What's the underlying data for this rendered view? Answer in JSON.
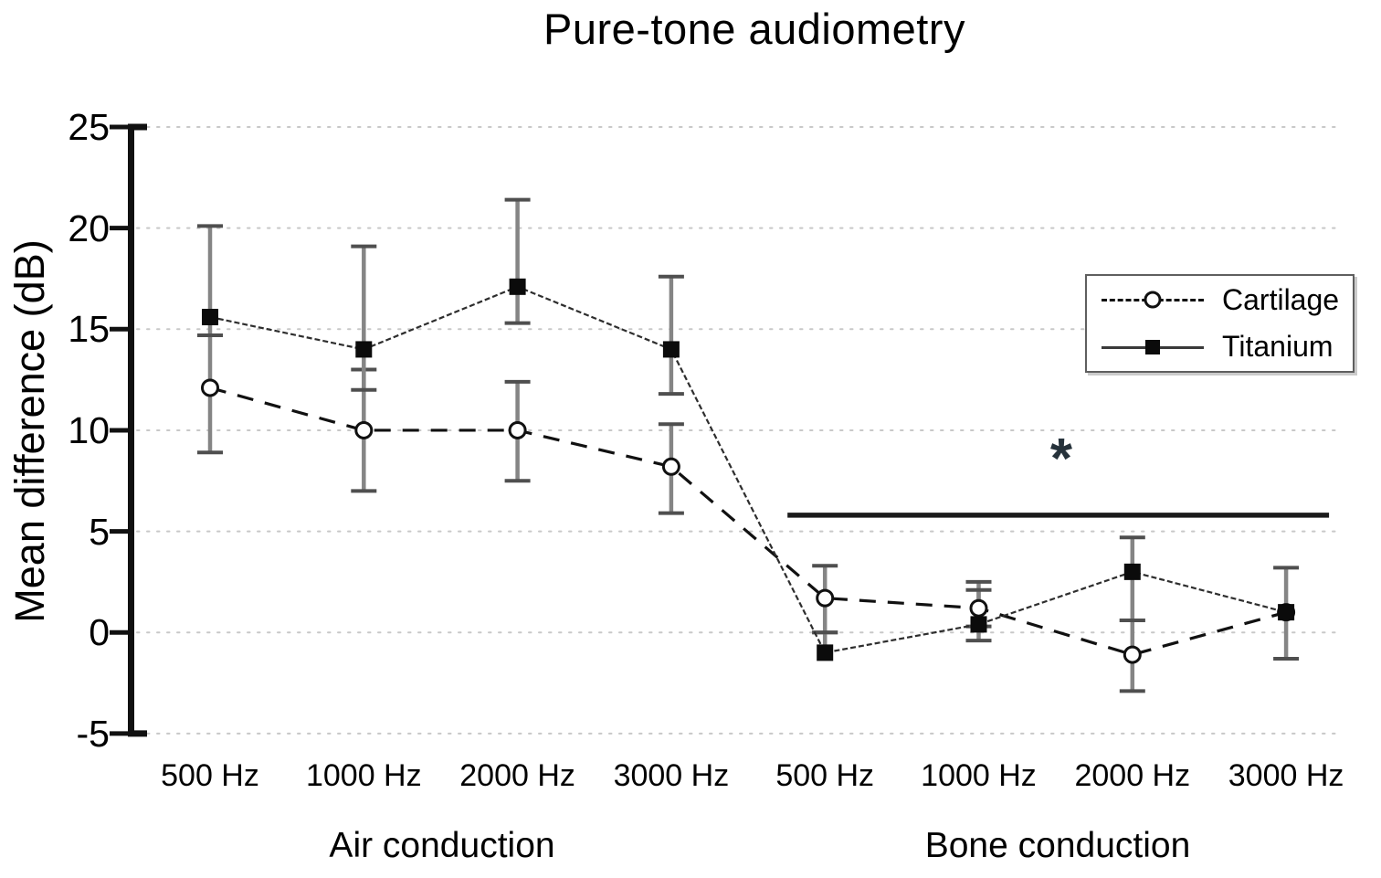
{
  "title": "Pure-tone audiometry",
  "y_axis": {
    "label": "Mean difference (dB)"
  },
  "annotation": {
    "significance_symbol": "*"
  },
  "colors": {
    "cartilage": "#111111",
    "titanium": "#2e2e2e",
    "error_bar": "#858585",
    "error_cap": "#4f4f4f",
    "grid": "#c8c8c8",
    "axis": "#111111",
    "asterisk": "#26323b",
    "significance_bar": "#1b1b1b",
    "legend_border": "#5f5f5f"
  },
  "chart_data": {
    "type": "line",
    "title": "Pure-tone audiometry",
    "ylabel": "Mean difference (dB)",
    "ylim": [
      -5,
      25
    ],
    "yticks": [
      25,
      20,
      15,
      10,
      5,
      0,
      -5
    ],
    "grid": "dotted horizontal gridlines at every 5 dB",
    "legend_position": "right",
    "categories": [
      "500 Hz",
      "1000 Hz",
      "2000 Hz",
      "3000 Hz",
      "500 Hz",
      "1000 Hz",
      "2000 Hz",
      "3000 Hz"
    ],
    "group_labels": [
      "Air conduction",
      "Bone conduction"
    ],
    "series": [
      {
        "name": "Cartilage",
        "line_style": "dashed",
        "marker": "open-circle",
        "values": [
          12.1,
          10.0,
          10.0,
          8.2,
          1.7,
          1.2,
          -1.1,
          1.0
        ],
        "err_hi": [
          14.7,
          13.0,
          12.4,
          10.3,
          3.3,
          2.5,
          0.6,
          1.0
        ],
        "err_lo": [
          8.9,
          7.0,
          7.5,
          5.9,
          0.0,
          0.3,
          -2.9,
          1.0
        ]
      },
      {
        "name": "Titanium",
        "line_style": "solid",
        "marker": "filled-square",
        "values": [
          15.6,
          14.0,
          17.1,
          14.0,
          -1.0,
          0.4,
          3.0,
          1.0
        ],
        "err_hi": [
          20.1,
          19.1,
          21.4,
          17.6,
          0.0,
          2.1,
          4.7,
          3.2
        ],
        "err_lo": [
          14.7,
          12.0,
          15.3,
          11.8,
          -1.0,
          -0.4,
          0.6,
          -1.3
        ]
      }
    ],
    "significance_bar": {
      "start_category_index": 4,
      "end_category_index": 7,
      "y_value": 5.8,
      "symbol": "*"
    }
  }
}
